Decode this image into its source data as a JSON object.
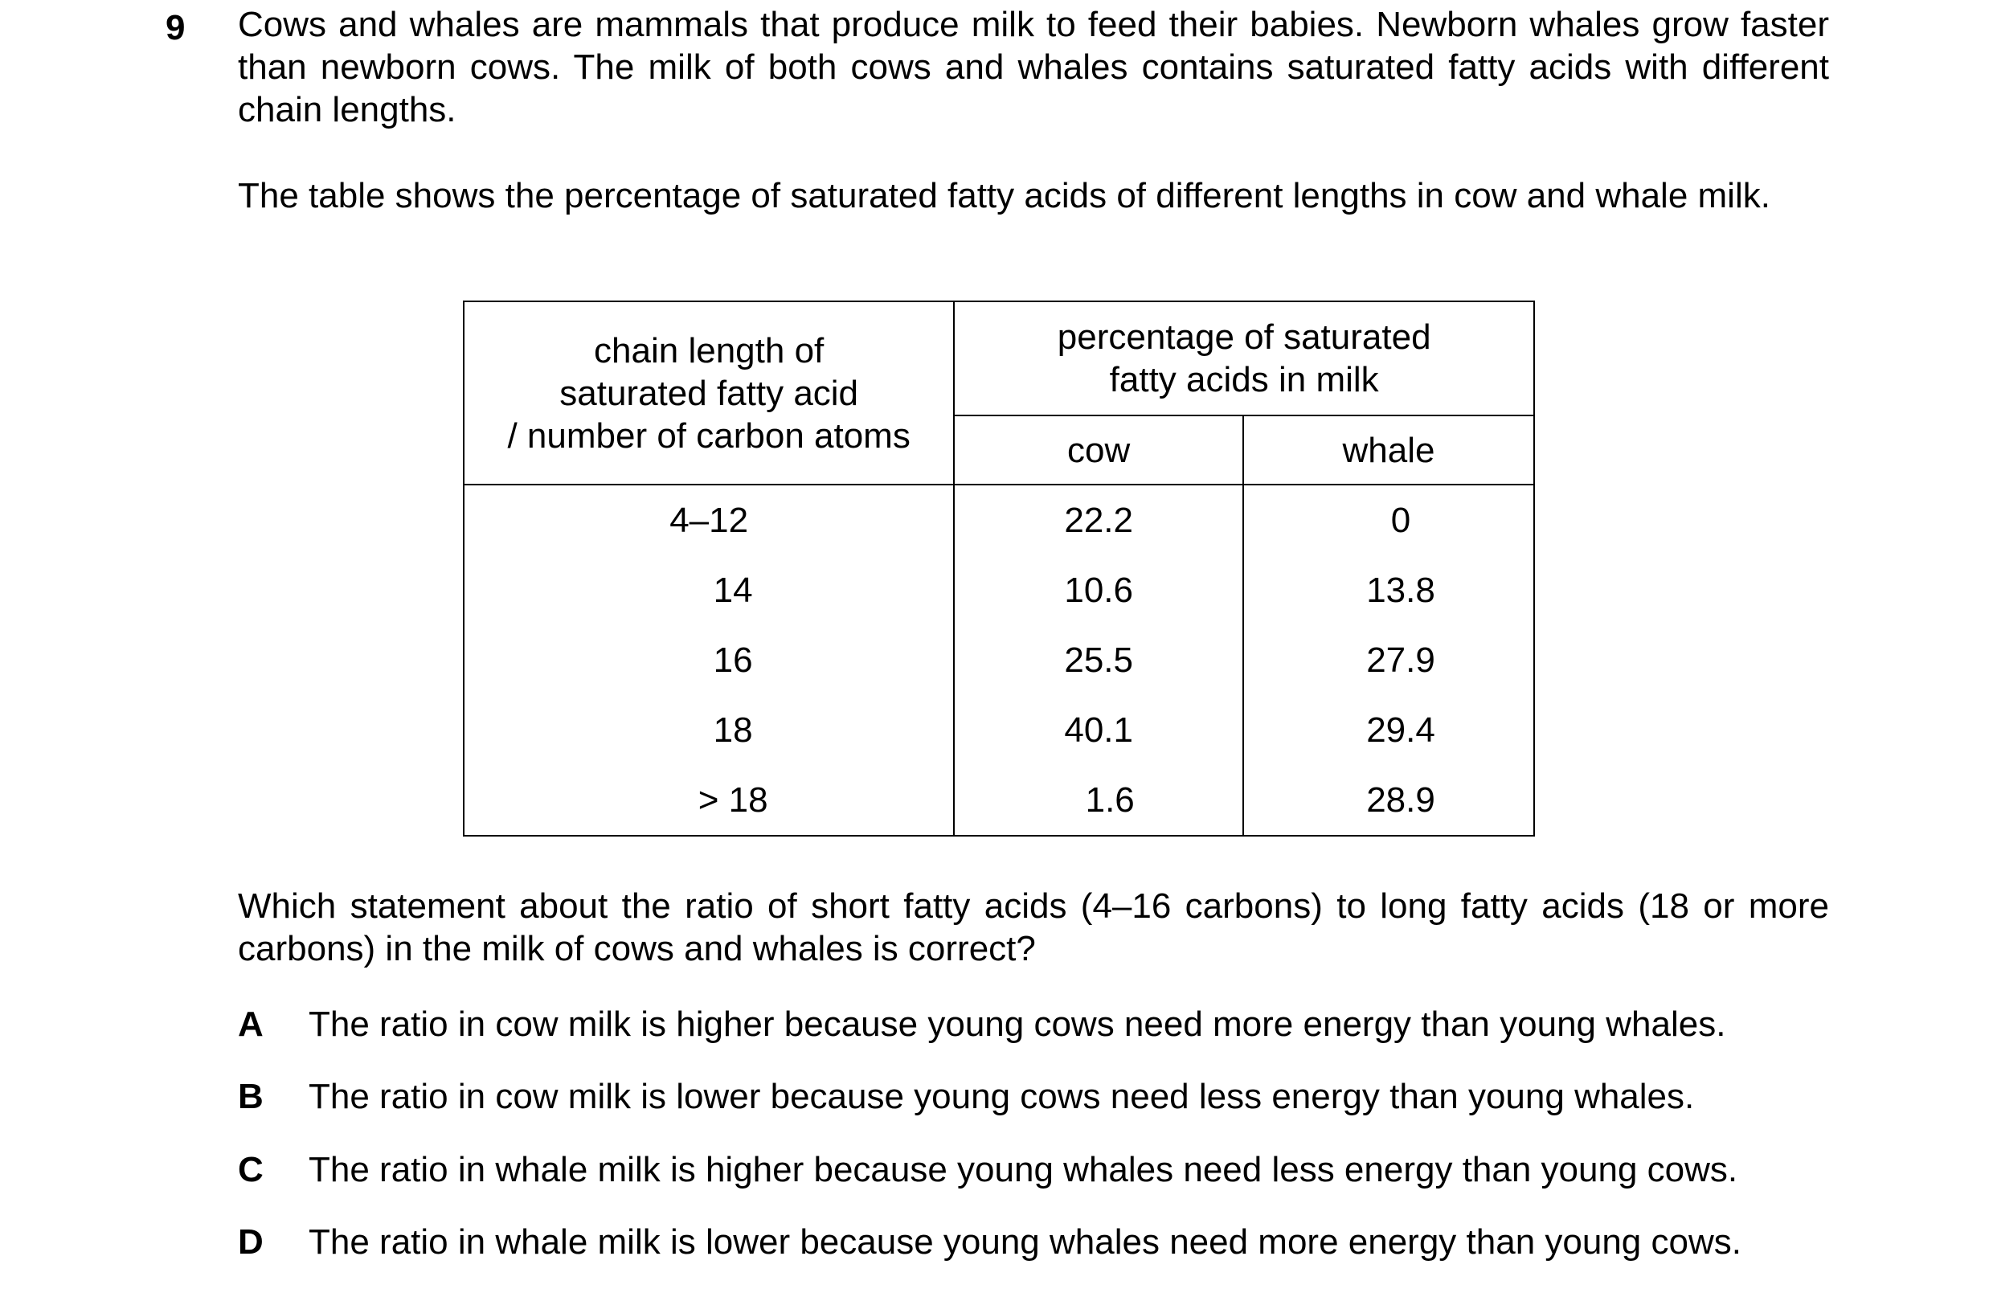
{
  "question": {
    "number": "9",
    "intro": "Cows and whales are mammals that produce milk to feed their babies. Newborn whales grow faster than newborn cows. The milk of both cows and whales contains saturated fatty acids with different chain lengths.",
    "table_intro": "The table shows the percentage of saturated fatty acids of different lengths in cow and whale milk.",
    "stem": "Which statement about the ratio of short fatty acids (4–16 carbons) to long fatty acids (18 or more carbons) in the milk of cows and whales is correct?"
  },
  "table": {
    "col1_header_line1": "chain length of",
    "col1_header_line2": "saturated fatty acid",
    "col1_header_line3": "/ number of carbon atoms",
    "group_header_line1": "percentage of saturated",
    "group_header_line2": "fatty acids in milk",
    "sub_cow": "cow",
    "sub_whale": "whale",
    "rows": [
      {
        "length": "4–12",
        "cow": "22.2",
        "whale": "0"
      },
      {
        "length": "14",
        "cow": "10.6",
        "whale": "13.8"
      },
      {
        "length": "16",
        "cow": "25.5",
        "whale": "27.9"
      },
      {
        "length": "18",
        "cow": "40.1",
        "whale": "29.4"
      },
      {
        "length": "> 18",
        "cow": "1.6",
        "whale": "28.9"
      }
    ]
  },
  "options": [
    {
      "letter": "A",
      "text": "The ratio in cow milk is higher because young cows need more energy than young whales."
    },
    {
      "letter": "B",
      "text": "The ratio in cow milk is lower because young cows need less energy than young whales."
    },
    {
      "letter": "C",
      "text": "The ratio in whale milk is higher because young whales need less energy than young cows."
    },
    {
      "letter": "D",
      "text": "The ratio in whale milk is lower because young whales need more energy than young cows."
    }
  ]
}
